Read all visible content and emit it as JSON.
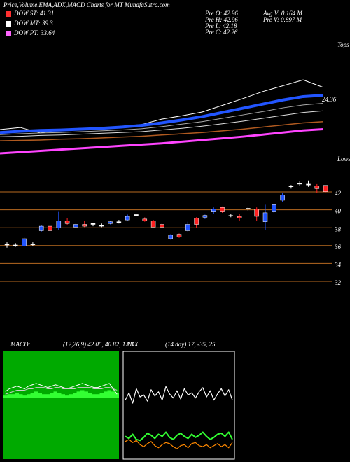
{
  "title": "Price,Volume,EMA,ADX,MACD Charts for MT MunafaSutra.com",
  "legend": [
    {
      "label": "DOW ST: 41.31",
      "color": "#ff3030"
    },
    {
      "label": "DOW MT: 39.3",
      "color": "#ffffff"
    },
    {
      "label": "DOW PT: 33.64",
      "color": "#ff66ff"
    }
  ],
  "info": [
    "Pre  O: 42.96",
    "Pre  H: 42.96",
    "Pre  L: 42.18",
    "Pre  C: 42.26",
    "Avg V: 0.164  M",
    "Pre  V: 0.897  M"
  ],
  "chart_data": [
    {
      "type": "line",
      "tops_label": "Tops",
      "lows_label": "Lows",
      "end_label": "24.36",
      "ylim": [
        20,
        46
      ],
      "series": [
        {
          "color": "#ffffff",
          "width": 1,
          "values": [
            26.7,
            27.2,
            25.9,
            26.7,
            27.0,
            26.9,
            27.5,
            27.9,
            29.2,
            30.0,
            30.9,
            32.5,
            34.1,
            35.8,
            37.2,
            38.6,
            36.8
          ]
        },
        {
          "color": "#2255ff",
          "width": 4,
          "values": [
            26.0,
            26.3,
            26.5,
            26.6,
            26.8,
            27.0,
            27.3,
            27.7,
            28.3,
            29.0,
            29.8,
            30.8,
            31.8,
            32.8,
            33.8,
            34.6,
            34.9
          ]
        },
        {
          "color": "#aaaaaa",
          "width": 1,
          "values": [
            25.5,
            25.7,
            25.9,
            26.0,
            26.2,
            26.4,
            26.6,
            26.9,
            27.4,
            28.0,
            28.6,
            29.4,
            30.2,
            31.0,
            31.9,
            32.6,
            33.0
          ]
        },
        {
          "color": "#dddddd",
          "width": 1,
          "values": [
            25.0,
            25.1,
            25.3,
            25.4,
            25.6,
            25.8,
            26.0,
            26.2,
            26.6,
            27.0,
            27.5,
            28.1,
            28.7,
            29.4,
            30.1,
            30.8,
            31.2
          ]
        },
        {
          "color": "#b05a20",
          "width": 1.5,
          "values": [
            24.0,
            24.1,
            24.2,
            24.4,
            24.5,
            24.7,
            24.9,
            25.1,
            25.4,
            25.7,
            26.0,
            26.4,
            26.8,
            27.3,
            27.8,
            28.3,
            28.6
          ]
        },
        {
          "color": "#ff44ff",
          "width": 3,
          "values": [
            21.0,
            21.3,
            21.6,
            21.9,
            22.2,
            22.5,
            22.8,
            23.1,
            23.4,
            23.8,
            24.2,
            24.6,
            25.0,
            25.5,
            26.0,
            26.5,
            26.8
          ]
        }
      ]
    },
    {
      "type": "candlestick",
      "ylim": [
        30.3,
        45.0
      ],
      "yticks": [
        42,
        40,
        38,
        36,
        34,
        32
      ],
      "up_color": "#2255ff",
      "down_color": "#ff2020",
      "doji_color": "#ffffff",
      "grid_color": "#b86a20",
      "open": [
        36.4,
        36.3,
        36.2,
        36.4,
        37.9,
        38.4,
        38.2,
        39.0,
        38.3,
        38.6,
        38.6,
        38.5,
        38.7,
        38.8,
        39.1,
        39.6,
        39.2,
        39.0,
        38.6,
        37.0,
        37.5,
        37.9,
        39.3,
        39.4,
        40.0,
        40.5,
        39.6,
        39.5,
        40.3,
        40.3,
        38.9,
        40.0,
        41.3,
        42.8,
        43.1,
        43.1,
        42.9,
        42.96
      ],
      "high": [
        36.6,
        36.5,
        37.2,
        36.6,
        38.5,
        38.5,
        40.0,
        39.3,
        38.7,
        39.0,
        38.8,
        38.7,
        39.0,
        39.1,
        39.7,
        39.8,
        39.4,
        39.1,
        38.8,
        37.5,
        37.6,
        38.9,
        39.4,
        39.7,
        40.5,
        40.6,
        39.8,
        39.8,
        40.5,
        40.5,
        40.8,
        40.8,
        42.1,
        43.0,
        43.4,
        43.5,
        43.1,
        42.96
      ],
      "low": [
        36.0,
        36.1,
        36.1,
        36.2,
        37.8,
        37.7,
        38.0,
        38.5,
        38.2,
        38.3,
        38.4,
        38.3,
        38.6,
        38.7,
        39.0,
        39.3,
        38.9,
        38.3,
        38.2,
        36.9,
        37.1,
        37.8,
        38.2,
        39.2,
        39.8,
        39.9,
        39.4,
        39.0,
        40.1,
        39.0,
        38.0,
        39.9,
        41.1,
        42.6,
        42.9,
        42.8,
        42.1,
        42.18
      ],
      "close": [
        36.3,
        36.2,
        37.0,
        36.4,
        38.4,
        37.9,
        39.0,
        38.7,
        38.6,
        38.4,
        38.7,
        38.4,
        38.9,
        38.9,
        39.5,
        39.7,
        39.0,
        38.3,
        38.3,
        37.4,
        37.2,
        38.6,
        38.6,
        39.6,
        40.3,
        40.0,
        39.6,
        39.3,
        40.4,
        39.5,
        39.9,
        40.8,
        41.9,
        42.9,
        43.2,
        43.0,
        42.6,
        42.26
      ]
    },
    {
      "type": "macd",
      "label": "MACD:",
      "params": "(12,26,9) 42.05, 40.82, 1.23",
      "background": "#00aa00",
      "ylim": [
        -4,
        4
      ],
      "histogram_color": "#33ff33",
      "histogram": [
        0.2,
        0.3,
        0.3,
        0.4,
        0.3,
        0.2,
        0.3,
        0.4,
        0.5,
        0.4,
        0.3,
        0.3,
        0.4,
        0.5,
        0.4,
        0.3,
        0.2,
        0.3,
        0.4,
        0.5,
        0.6,
        0.5,
        0.4,
        0.3,
        0.3,
        0.4,
        0.5,
        0.6,
        0.5,
        0.4
      ],
      "series": [
        {
          "color": "#ffffff",
          "values": [
            0.5,
            0.7,
            0.8,
            0.9,
            0.8,
            0.7,
            0.9,
            1.0,
            1.1,
            1.0,
            0.9,
            0.8,
            0.9,
            1.0,
            0.9,
            0.8,
            0.7,
            0.8,
            0.9,
            1.0,
            1.1,
            1.0,
            0.9,
            0.8,
            0.8,
            0.9,
            1.0,
            1.1,
            0.7,
            0.3
          ]
        },
        {
          "color": "#cccccc",
          "values": [
            0.3,
            0.4,
            0.5,
            0.6,
            0.6,
            0.6,
            0.7,
            0.7,
            0.8,
            0.8,
            0.8,
            0.7,
            0.7,
            0.8,
            0.8,
            0.7,
            0.7,
            0.7,
            0.7,
            0.8,
            0.8,
            0.8,
            0.8,
            0.7,
            0.7,
            0.7,
            0.8,
            0.8,
            0.7,
            0.6
          ]
        }
      ]
    },
    {
      "type": "adx",
      "label": "ADX",
      "params": "(14 day) 17, -35, 25",
      "ylim": [
        0,
        100
      ],
      "series": [
        {
          "color": "#ffffff",
          "values": [
            55,
            62,
            52,
            66,
            58,
            60,
            54,
            65,
            59,
            63,
            55,
            68,
            61,
            57,
            64,
            56,
            66,
            60,
            62,
            57,
            63,
            67,
            58,
            64,
            55,
            61,
            66,
            59,
            65,
            55
          ]
        },
        {
          "color": "#33ff33",
          "values": [
            20,
            18,
            22,
            17,
            16,
            19,
            23,
            21,
            18,
            22,
            20,
            24,
            19,
            17,
            21,
            23,
            20,
            18,
            22,
            19,
            21,
            24,
            20,
            17,
            19,
            22,
            23,
            20,
            24,
            17
          ]
        },
        {
          "color": "#ff8800",
          "values": [
            15,
            17,
            14,
            16,
            12,
            10,
            13,
            15,
            11,
            9,
            12,
            14,
            13,
            10,
            8,
            11,
            12,
            9,
            13,
            14,
            11,
            10,
            12,
            9,
            11,
            13,
            10,
            12,
            9,
            14
          ]
        }
      ]
    }
  ]
}
